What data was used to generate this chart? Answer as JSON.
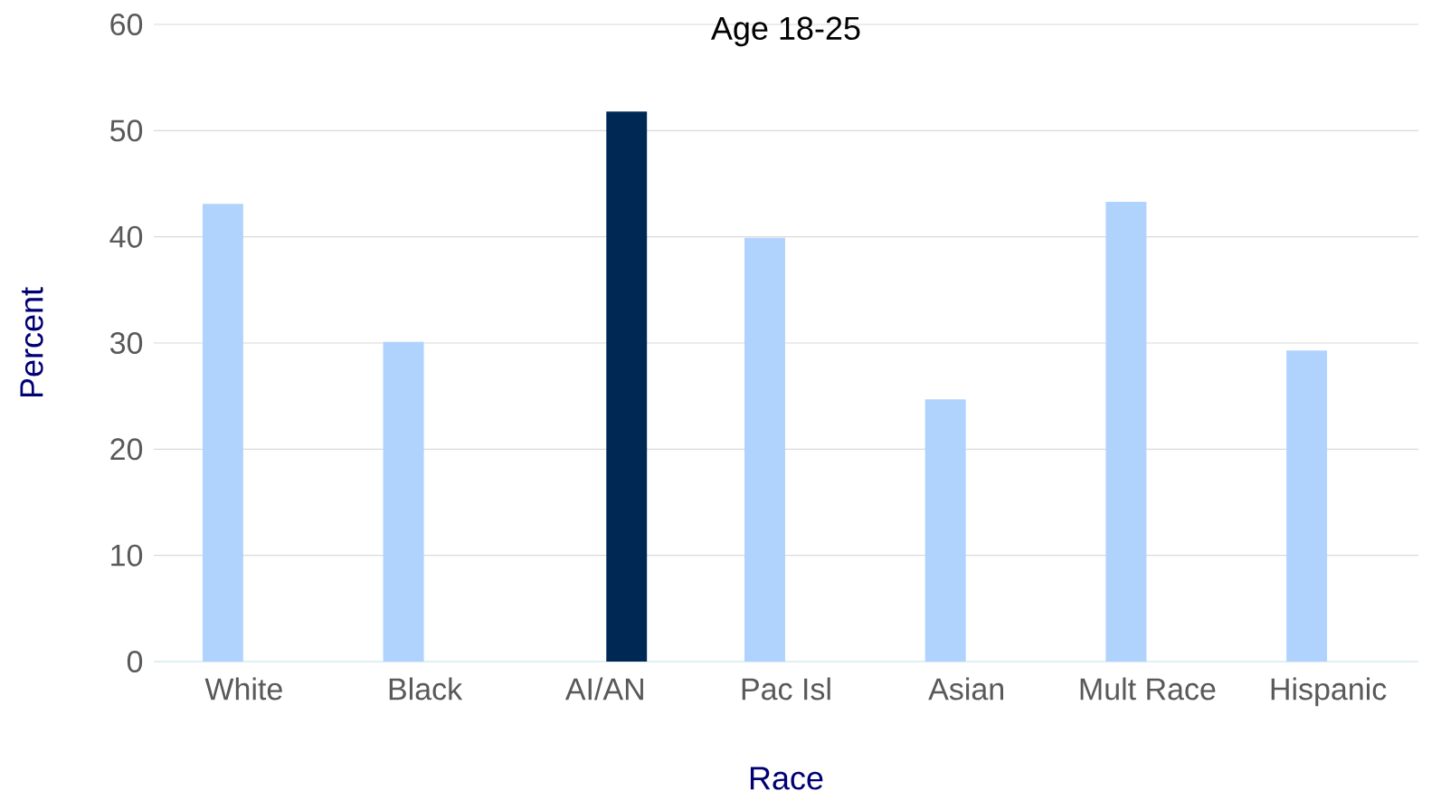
{
  "chart_data": {
    "type": "bar",
    "title": "Age 18-25",
    "xlabel": "Race",
    "ylabel": "Percent",
    "categories": [
      "White",
      "Black",
      "AI/AN",
      "Pac Isl",
      "Asian",
      "Mult Race",
      "Hispanic"
    ],
    "series": [
      {
        "color": "#b0d3fe",
        "values": [
          43.1,
          30.1,
          null,
          39.9,
          24.7,
          43.3,
          29.3
        ]
      },
      {
        "color": "#002855",
        "values": [
          null,
          null,
          51.8,
          null,
          null,
          null,
          null
        ]
      }
    ],
    "ylim": [
      0,
      60
    ],
    "yticks": [
      0,
      10,
      20,
      30,
      40,
      50,
      60
    ],
    "grid": "y"
  }
}
